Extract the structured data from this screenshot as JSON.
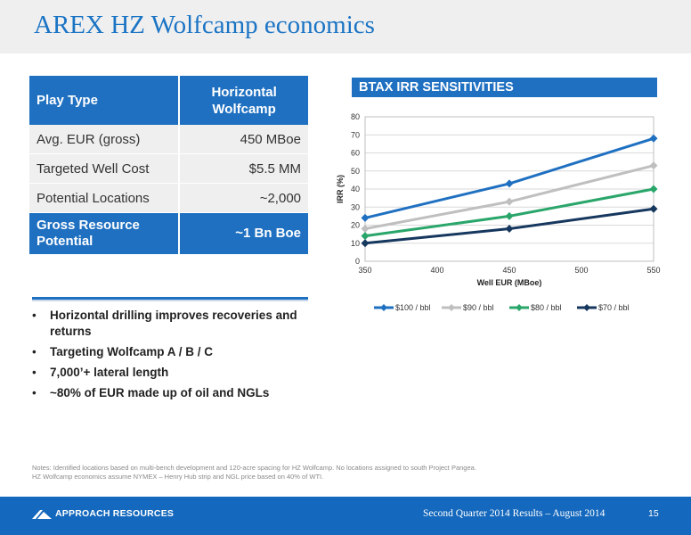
{
  "title": "AREX HZ Wolfcamp economics",
  "table": {
    "header": [
      "Play Type",
      "Horizontal Wolfcamp"
    ],
    "rows": [
      {
        "label": "Avg. EUR (gross)",
        "value": "450 MBoe"
      },
      {
        "label": "Targeted Well Cost",
        "value": "$5.5 MM"
      },
      {
        "label": "Potential Locations",
        "value": "~2,000"
      }
    ],
    "total": {
      "label": "Gross Resource Potential",
      "value": "~1 Bn Boe"
    }
  },
  "bullets": [
    "Horizontal drilling improves recoveries and returns",
    "Targeting Wolfcamp A / B / C",
    "7,000’+ lateral length",
    "~80% of EUR made up of oil and NGLs"
  ],
  "chart_banner": "BTAX IRR SENSITIVITIES",
  "chart_data": {
    "type": "line",
    "title": "",
    "xlabel": "Well EUR (MBoe)",
    "ylabel": "IRR (%)",
    "x": [
      350,
      450,
      550
    ],
    "x_ticks": [
      "350",
      "400",
      "450",
      "500",
      "550"
    ],
    "y_ticks": [
      "0",
      "10",
      "20",
      "30",
      "40",
      "50",
      "60",
      "70",
      "80"
    ],
    "xlim": [
      350,
      550
    ],
    "ylim": [
      0,
      80
    ],
    "grid": "horizontal",
    "legend_position": "bottom",
    "series": [
      {
        "name": "$100 / bbl",
        "values": [
          24,
          43,
          68
        ],
        "color": "#1f70c1",
        "marker": "diamond"
      },
      {
        "name": "$90 / bbl",
        "values": [
          18,
          33,
          53
        ],
        "color": "#bfbfbf",
        "marker": "diamond"
      },
      {
        "name": "$80 / bbl",
        "values": [
          14,
          25,
          40
        ],
        "color": "#2aa66a",
        "marker": "diamond"
      },
      {
        "name": "$70 / bbl",
        "values": [
          10,
          18,
          29
        ],
        "color": "#16375e",
        "marker": "diamond"
      }
    ]
  },
  "notes": [
    "Notes: Identified locations based on multi-bench development and 120-acre spacing for HZ Wolfcamp.  No locations assigned to south Project Pangea.",
    "HZ Wolfcamp economics assume NYMEX – Henry Hub strip and NGL price based on 40% of WTI."
  ],
  "footer": {
    "company": "APPROACH RESOURCES",
    "text": "Second Quarter 2014 Results – August 2014",
    "page": "15"
  }
}
